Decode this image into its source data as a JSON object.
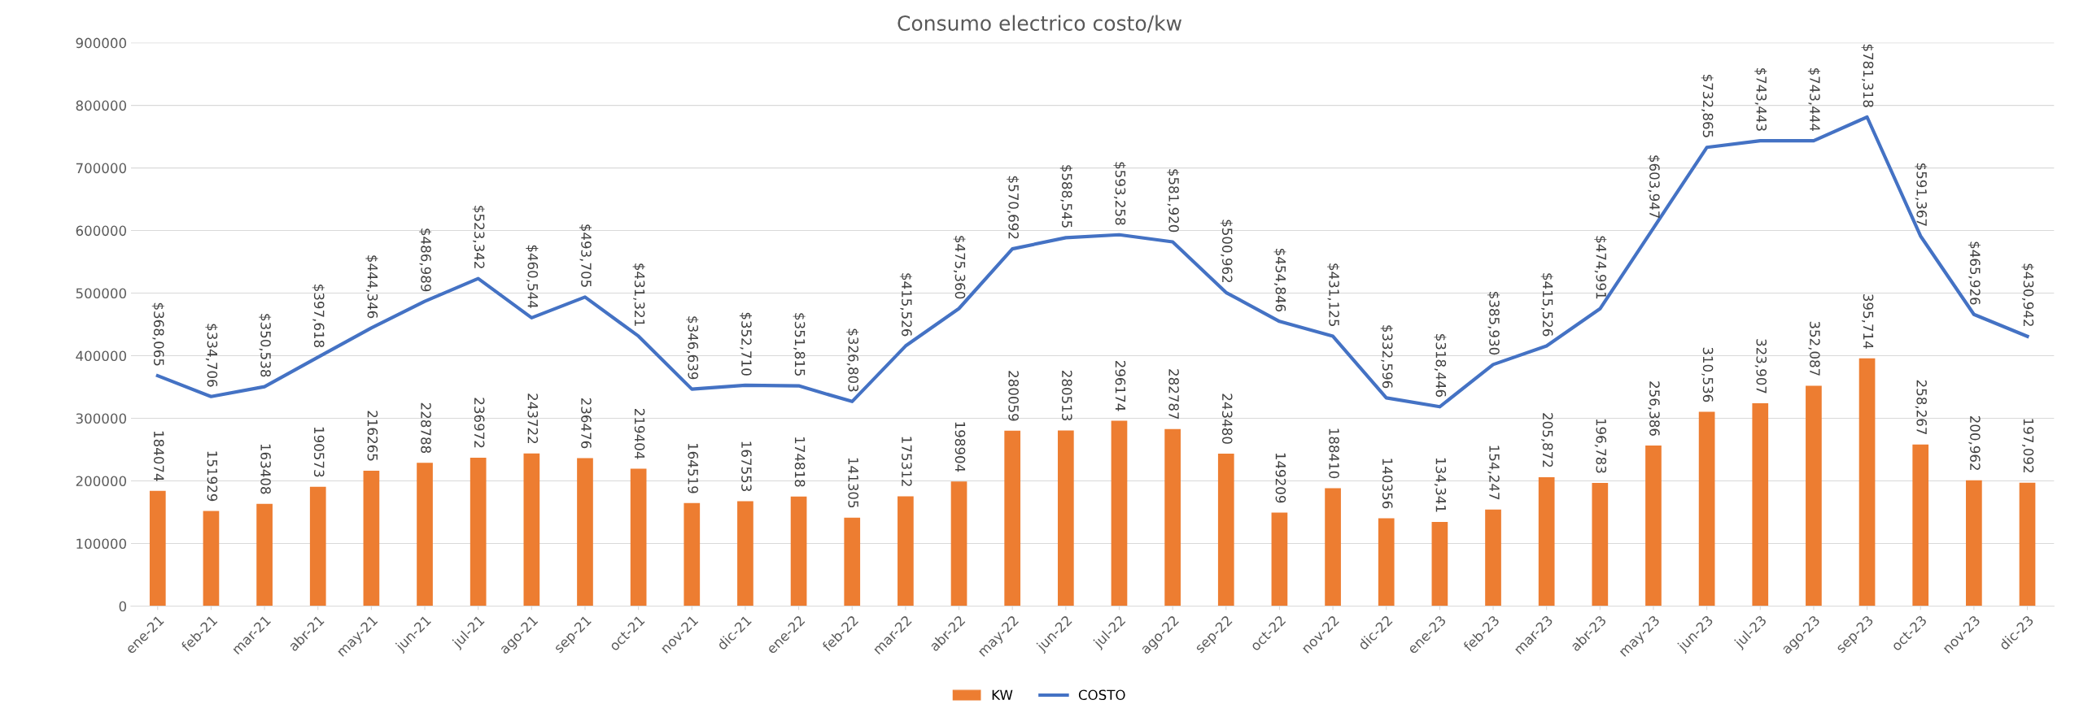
{
  "chart_data": {
    "type": "bar",
    "title": "Consumo electrico costo/kw",
    "categories": [
      "ene-21",
      "feb-21",
      "mar-21",
      "abr-21",
      "may-21",
      "jun-21",
      "jul-21",
      "ago-21",
      "sep-21",
      "oct-21",
      "nov-21",
      "dic-21",
      "ene-22",
      "feb-22",
      "mar-22",
      "abr-22",
      "may-22",
      "jun-22",
      "jul-22",
      "ago-22",
      "sep-22",
      "oct-22",
      "nov-22",
      "dic-22",
      "ene-23",
      "feb-23",
      "mar-23",
      "abr-23",
      "may-23",
      "jun-23",
      "jul-23",
      "ago-23",
      "sep-23",
      "oct-23",
      "nov-23",
      "dic-23"
    ],
    "series": [
      {
        "name": "KW",
        "color": "#ed7d31",
        "values": [
          184074,
          151929,
          163408,
          190573,
          216265,
          228788,
          236972,
          243722,
          236476,
          219404,
          164519,
          167553,
          174818,
          141305,
          175312,
          198904,
          280059,
          280513,
          296174,
          282787,
          243480,
          149209,
          188410,
          140356,
          134341,
          154247,
          205872,
          196783,
          256386,
          310536,
          323907,
          352087,
          395714,
          258267,
          200962,
          197092
        ],
        "value_labels": [
          "184074",
          "151929",
          "163408",
          "190573",
          "216265",
          "228788",
          "236972",
          "243722",
          "236476",
          "219404",
          "164519",
          "167553",
          "174818",
          "141305",
          "175312",
          "198904",
          "280059",
          "280513",
          "296174",
          "282787",
          "243480",
          "149209",
          "188410",
          "140356",
          "134,341",
          "154,247",
          "205,872",
          "196,783",
          "256,386",
          "310,536",
          "323,907",
          "352,087",
          "395,714",
          "258,267",
          "200,962",
          "197,092"
        ]
      },
      {
        "name": "COSTO",
        "type": "line",
        "color": "#4472c4",
        "values": [
          368065,
          334706,
          350538,
          397618,
          444346,
          486989,
          523342,
          460544,
          493705,
          431321,
          346639,
          352710,
          351815,
          326803,
          415526,
          475360,
          570692,
          588545,
          593258,
          581920,
          500962,
          454846,
          431125,
          332596,
          318446,
          385930,
          415526,
          474991,
          603947,
          732865,
          743443,
          743444,
          781318,
          591367,
          465926,
          430942
        ],
        "value_labels": [
          "$368,065",
          "$334,706",
          "$350,538",
          "$397,618",
          "$444,346",
          "$486,989",
          "$523,342",
          "$460,544",
          "$493,705",
          "$431,321",
          "$346,639",
          "$352,710",
          "$351,815",
          "$326,803",
          "$415,526",
          "$475,360",
          "$570,692",
          "$588,545",
          "$593,258",
          "$581,920",
          "$500,962",
          "$454,846",
          "$431,125",
          "$332,596",
          "$318,446",
          "$385,930",
          "$415,526",
          "$474,991",
          "$603,947",
          "$732,865",
          "$743,443",
          "$743,444",
          "$781,318",
          "$591,367",
          "$465,926",
          "$430,942"
        ]
      }
    ],
    "ylim": [
      0,
      900000
    ],
    "yticks": [
      0,
      100000,
      200000,
      300000,
      400000,
      500000,
      600000,
      700000,
      800000,
      900000
    ],
    "grid": "y",
    "legend": "bottom"
  }
}
